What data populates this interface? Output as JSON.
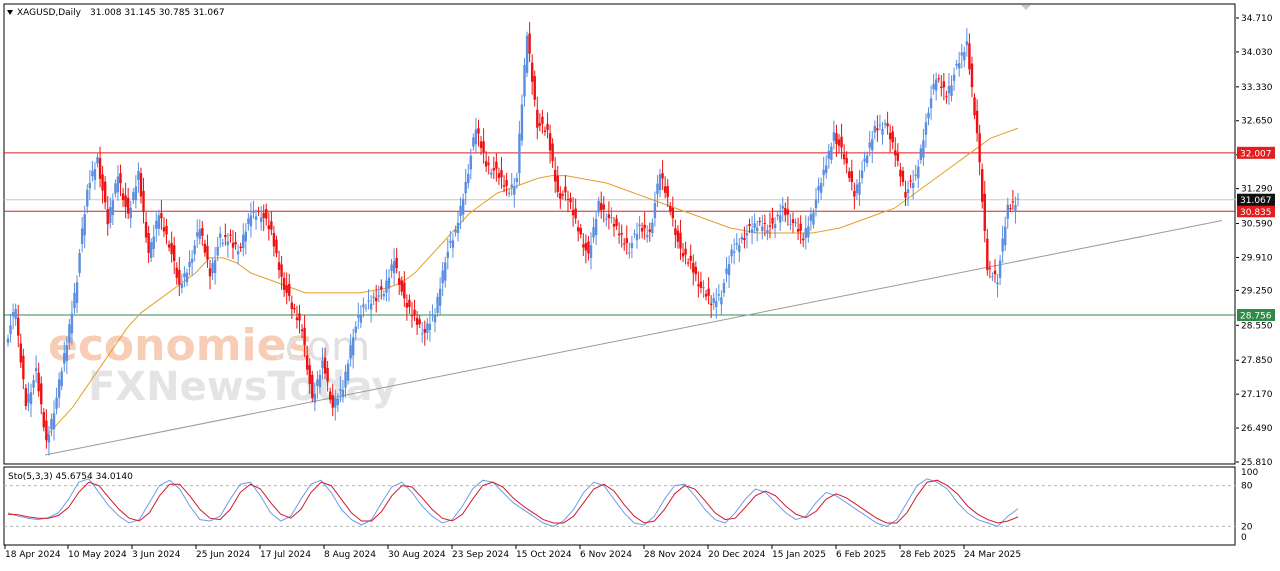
{
  "header": {
    "symbol_label": "XAGUSD,Daily",
    "ohlc_label": "31.008 31.145 30.785 31.067"
  },
  "oscillator": {
    "label": "Sto(5,3,3) 45.6754 34.0140",
    "levels": [
      0,
      20,
      80,
      100
    ]
  },
  "watermark": {
    "line1": "economies",
    "line1_suffix": ".com",
    "line2": "FXNewsToday"
  },
  "colors": {
    "bull": "#5b8ee0",
    "bear": "#ee1111",
    "ma": "#e59e25",
    "trend": "#9a9a9a",
    "res_line": "#e31d1d",
    "sup_line": "#2f8a4a",
    "cur_line": "#c8c8c8",
    "stoch_main": "#6d9ee8",
    "stoch_signal": "#d11a2a",
    "tag_red": "#e31d1d",
    "tag_green": "#2f8a4a",
    "tag_dark": "#111111"
  },
  "chart_data": [
    {
      "type": "candlestick",
      "symbol": "XAGUSD",
      "timeframe": "Daily",
      "current": {
        "open": 31.008,
        "high": 31.145,
        "low": 30.785,
        "close": 31.067
      },
      "ylim": [
        25.81,
        34.95
      ],
      "y_ticks": [
        "34.710",
        "34.030",
        "33.330",
        "32.650",
        "31.970",
        "31.290",
        "30.590",
        "29.910",
        "29.250",
        "28.550",
        "27.850",
        "27.170",
        "26.490",
        "25.810"
      ],
      "x_ticks": [
        "18 Apr 2024",
        "10 May 2024",
        "3 Jun 2024",
        "25 Jun 2024",
        "17 Jul 2024",
        "8 Aug 2024",
        "30 Aug 2024",
        "23 Sep 2024",
        "15 Oct 2024",
        "6 Nov 2024",
        "28 Nov 2024",
        "20 Dec 2024",
        "15 Jan 2025",
        "6 Feb 2025",
        "28 Feb 2025",
        "24 Mar 2025"
      ],
      "levels": [
        {
          "value": 32.007,
          "label": "32.007",
          "role": "resistance"
        },
        {
          "value": 30.835,
          "label": "30.835",
          "role": "support"
        },
        {
          "value": 28.756,
          "label": "28.756",
          "role": "support"
        },
        {
          "value": 31.067,
          "label": "31.067",
          "role": "current"
        }
      ],
      "trendline": [
        {
          "date": "18 Apr 2024",
          "value": 25.95
        },
        {
          "date": "31 Mar 2025",
          "value": 30.65
        }
      ],
      "series": [
        {
          "values": [
            [
              28.2,
              28.9
            ],
            [
              28.7,
              27.0
            ],
            [
              27.0,
              27.6
            ],
            [
              27.6,
              26.2
            ],
            [
              26.2,
              27.1
            ],
            [
              27.1,
              28.2
            ],
            [
              28.2,
              29.5
            ],
            [
              29.6,
              31.2
            ],
            [
              31.3,
              31.9
            ],
            [
              31.9,
              30.6
            ],
            [
              30.6,
              31.6
            ],
            [
              31.6,
              30.7
            ],
            [
              30.7,
              31.6
            ],
            [
              31.6,
              30.0
            ],
            [
              29.9,
              30.8
            ],
            [
              30.8,
              30.2
            ],
            [
              30.2,
              29.3
            ],
            [
              29.3,
              29.8
            ],
            [
              29.8,
              30.5
            ],
            [
              30.5,
              29.6
            ],
            [
              29.6,
              30.3
            ],
            [
              30.2,
              30.3
            ],
            [
              30.2,
              30.1
            ],
            [
              30.1,
              30.8
            ],
            [
              30.8,
              30.8
            ],
            [
              30.8,
              30.4
            ],
            [
              30.4,
              29.5
            ],
            [
              29.5,
              28.9
            ],
            [
              28.9,
              28.5
            ],
            [
              28.5,
              27.0
            ],
            [
              27.0,
              27.8
            ],
            [
              27.9,
              26.9
            ],
            [
              26.9,
              27.3
            ],
            [
              27.3,
              28.4
            ],
            [
              28.4,
              28.9
            ],
            [
              28.9,
              29.1
            ],
            [
              29.1,
              29.2
            ],
            [
              29.2,
              29.9
            ],
            [
              29.9,
              29.0
            ],
            [
              29.0,
              28.7
            ],
            [
              28.7,
              28.4
            ],
            [
              28.4,
              28.8
            ],
            [
              28.8,
              29.9
            ],
            [
              29.9,
              30.4
            ],
            [
              30.4,
              31.4
            ],
            [
              31.4,
              32.5
            ],
            [
              32.5,
              31.8
            ],
            [
              31.8,
              31.6
            ],
            [
              31.6,
              31.3
            ],
            [
              31.2,
              31.5
            ],
            [
              31.6,
              34.4
            ],
            [
              34.4,
              32.6
            ],
            [
              32.6,
              32.4
            ],
            [
              32.4,
              31.2
            ],
            [
              31.2,
              31.1
            ],
            [
              31.1,
              30.5
            ],
            [
              30.5,
              29.9
            ],
            [
              29.9,
              31.0
            ],
            [
              31.0,
              30.7
            ],
            [
              30.7,
              30.4
            ],
            [
              30.4,
              30.1
            ],
            [
              30.1,
              30.5
            ],
            [
              30.5,
              30.4
            ],
            [
              30.4,
              31.6
            ],
            [
              31.6,
              30.9
            ],
            [
              30.9,
              30.0
            ],
            [
              30.0,
              29.8
            ],
            [
              29.8,
              29.3
            ],
            [
              29.3,
              29.0
            ],
            [
              29.0,
              29.2
            ],
            [
              29.2,
              30.0
            ],
            [
              30.0,
              30.3
            ],
            [
              30.3,
              30.5
            ],
            [
              30.5,
              30.6
            ],
            [
              30.6,
              30.5
            ],
            [
              30.5,
              30.9
            ],
            [
              30.9,
              30.6
            ],
            [
              30.6,
              30.3
            ],
            [
              30.3,
              30.9
            ],
            [
              30.9,
              31.6
            ],
            [
              31.6,
              32.4
            ],
            [
              32.4,
              31.9
            ],
            [
              31.9,
              31.2
            ],
            [
              31.2,
              31.8
            ],
            [
              31.8,
              32.5
            ],
            [
              32.5,
              32.6
            ],
            [
              32.6,
              32.0
            ],
            [
              32.0,
              31.2
            ],
            [
              31.2,
              31.5
            ],
            [
              31.5,
              32.6
            ],
            [
              32.7,
              33.5
            ],
            [
              33.5,
              33.2
            ],
            [
              33.2,
              33.7
            ],
            [
              33.7,
              34.2
            ],
            [
              34.2,
              32.4
            ],
            [
              32.4,
              29.7
            ],
            [
              29.7,
              29.5
            ],
            [
              29.5,
              30.9
            ],
            [
              30.9,
              31.07
            ]
          ]
        }
      ],
      "ma_series": [
        26.3,
        26.6,
        26.9,
        27.3,
        27.7,
        28.1,
        28.5,
        28.8,
        29.0,
        29.2,
        29.4,
        29.6,
        29.9,
        29.9,
        29.8,
        29.6,
        29.5,
        29.4,
        29.3,
        29.2,
        29.2,
        29.2,
        29.2,
        29.2,
        29.25,
        29.3,
        29.4,
        29.6,
        29.9,
        30.2,
        30.5,
        30.8,
        31.0,
        31.2,
        31.3,
        31.4,
        31.5,
        31.55,
        31.55,
        31.5,
        31.45,
        31.4,
        31.3,
        31.2,
        31.1,
        31.0,
        30.9,
        30.8,
        30.7,
        30.6,
        30.5,
        30.45,
        30.4,
        30.4,
        30.4,
        30.4,
        30.4,
        30.45,
        30.5,
        30.6,
        30.7,
        30.8,
        30.9,
        31.1,
        31.3,
        31.5,
        31.7,
        31.9,
        32.1,
        32.3,
        32.4,
        32.5
      ]
    },
    {
      "type": "line",
      "indicator": "Stochastic(5,3,3)",
      "ylim": [
        0,
        100
      ],
      "series": [
        {
          "name": "main",
          "values": [
            40,
            35,
            32,
            30,
            33,
            40,
            60,
            85,
            90,
            70,
            50,
            35,
            25,
            30,
            55,
            80,
            88,
            75,
            50,
            30,
            28,
            35,
            60,
            82,
            85,
            65,
            40,
            28,
            35,
            60,
            82,
            88,
            70,
            45,
            30,
            22,
            30,
            55,
            78,
            85,
            70,
            50,
            35,
            25,
            30,
            50,
            75,
            88,
            85,
            70,
            55,
            45,
            35,
            25,
            20,
            28,
            45,
            70,
            85,
            80,
            60,
            40,
            25,
            22,
            35,
            60,
            80,
            82,
            65,
            45,
            30,
            25,
            40,
            60,
            75,
            70,
            55,
            40,
            30,
            35,
            55,
            70,
            65,
            55,
            45,
            35,
            25,
            20,
            30,
            55,
            80,
            90,
            85,
            75,
            55,
            40,
            30,
            25,
            20,
            35,
            46
          ]
        },
        {
          "name": "signal",
          "values": [
            38,
            37,
            34,
            32,
            32,
            36,
            48,
            70,
            85,
            80,
            62,
            45,
            32,
            28,
            40,
            65,
            82,
            82,
            65,
            45,
            32,
            30,
            45,
            70,
            82,
            75,
            55,
            38,
            32,
            45,
            70,
            85,
            80,
            60,
            40,
            28,
            28,
            42,
            65,
            80,
            78,
            62,
            45,
            32,
            28,
            38,
            60,
            80,
            85,
            78,
            62,
            50,
            40,
            30,
            25,
            25,
            35,
            55,
            75,
            82,
            72,
            52,
            35,
            25,
            28,
            45,
            68,
            80,
            75,
            58,
            40,
            30,
            32,
            48,
            65,
            72,
            65,
            50,
            38,
            33,
            42,
            60,
            68,
            62,
            52,
            42,
            32,
            25,
            25,
            40,
            65,
            85,
            88,
            80,
            68,
            50,
            38,
            30,
            25,
            28,
            34
          ]
        }
      ]
    }
  ]
}
